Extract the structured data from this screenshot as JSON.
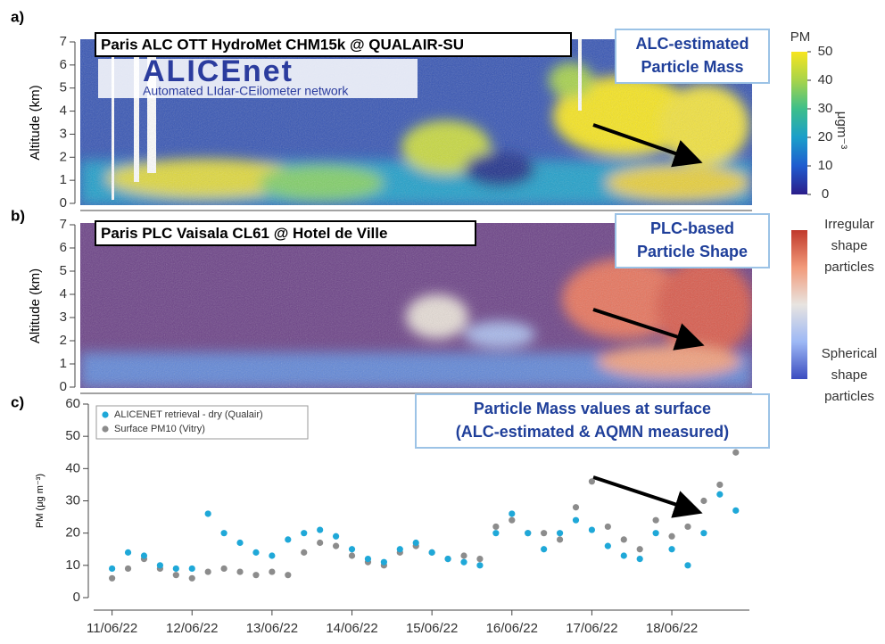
{
  "chart_data": [
    {
      "type": "heatmap",
      "panel_label": "a)",
      "title": "Paris ALC OTT HydroMet CHM15k @ QUALAIR-SU",
      "logo": "ALICEnet",
      "logo_subtitle": "Automated LIdar-CEilometer network",
      "annotation": [
        "ALC-estimated",
        "Particle Mass"
      ],
      "ylabel": "Altitude (km)",
      "ylim": [
        0,
        7
      ],
      "yticks": [
        0,
        1,
        2,
        3,
        4,
        5,
        6,
        7
      ],
      "colorbar": {
        "title": "PM",
        "unit": "μgm⁻³",
        "lim": [
          0,
          50
        ],
        "ticks": [
          0,
          10,
          20,
          30,
          40,
          50
        ],
        "colors": [
          "#2b1d8a",
          "#1f5ccf",
          "#1a9fca",
          "#3dbf8a",
          "#a8d44a",
          "#f7e51e"
        ]
      }
    },
    {
      "type": "heatmap",
      "panel_label": "b)",
      "title": "Paris PLC Vaisala CL61 @ Hotel de Ville",
      "annotation": [
        "PLC-based",
        "Particle Shape"
      ],
      "ylabel": "Altitude (km)",
      "ylim": [
        0,
        7
      ],
      "yticks": [
        0,
        1,
        2,
        3,
        4,
        5,
        6,
        7
      ],
      "colorbar": {
        "labels": [
          [
            "Irregular",
            "shape",
            "particles"
          ],
          [
            "Spherical",
            "shape",
            "particles"
          ]
        ],
        "colors": [
          "#3b4cc0",
          "#9db8f5",
          "#e8e4e0",
          "#f29a7a",
          "#c0392b"
        ]
      }
    },
    {
      "type": "scatter",
      "panel_label": "c)",
      "annotation": [
        "Particle Mass values at surface",
        "(ALC-estimated & AQMN measured)"
      ],
      "ylabel": "PM (μg m⁻³)",
      "ylim": [
        0,
        60
      ],
      "yticks": [
        0,
        10,
        20,
        30,
        40,
        50,
        60
      ],
      "xlim": [
        -0.23,
        7.97
      ],
      "xticks": [
        {
          "value": 0,
          "label": "11/06/22"
        },
        {
          "value": 1,
          "label": "12/06/22"
        },
        {
          "value": 2,
          "label": "13/06/22"
        },
        {
          "value": 3,
          "label": "14/06/22"
        },
        {
          "value": 4,
          "label": "15/06/22"
        },
        {
          "value": 5,
          "label": "16/06/22"
        },
        {
          "value": 6,
          "label": "17/06/22"
        },
        {
          "value": 7,
          "label": "18/06/22"
        }
      ],
      "x": [
        0,
        0.2,
        0.4,
        0.6,
        0.8,
        1,
        1.2,
        1.4,
        1.6,
        1.8,
        2,
        2.2,
        2.4,
        2.6,
        2.8,
        3,
        3.2,
        3.4,
        3.6,
        3.8,
        4,
        4.2,
        4.4,
        4.6,
        4.8,
        5,
        5.2,
        5.4,
        5.6,
        5.8,
        6,
        6.2,
        6.4,
        6.6,
        6.8,
        7,
        7.2,
        7.4,
        7.6,
        7.8
      ],
      "series": [
        {
          "name": "ALICENET retrieval - dry (Qualair)",
          "color": "#1fa8d8",
          "values": [
            9,
            14,
            13,
            10,
            9,
            9,
            26,
            20,
            17,
            14,
            13,
            18,
            20,
            21,
            19,
            15,
            12,
            11,
            15,
            17,
            14,
            12,
            11,
            10,
            20,
            26,
            20,
            15,
            20,
            24,
            21,
            16,
            13,
            12,
            20,
            15,
            10,
            20,
            32,
            27
          ]
        },
        {
          "name": "Surface PM10 (Vitry)",
          "color": "#8c8c8c",
          "values": [
            6,
            9,
            12,
            9,
            7,
            6,
            8,
            9,
            8,
            7,
            8,
            7,
            14,
            17,
            16,
            13,
            11,
            10,
            14,
            16,
            14,
            12,
            13,
            12,
            22,
            24,
            20,
            20,
            18,
            28,
            36,
            22,
            18,
            15,
            24,
            19,
            22,
            30,
            35,
            45
          ]
        }
      ]
    }
  ]
}
